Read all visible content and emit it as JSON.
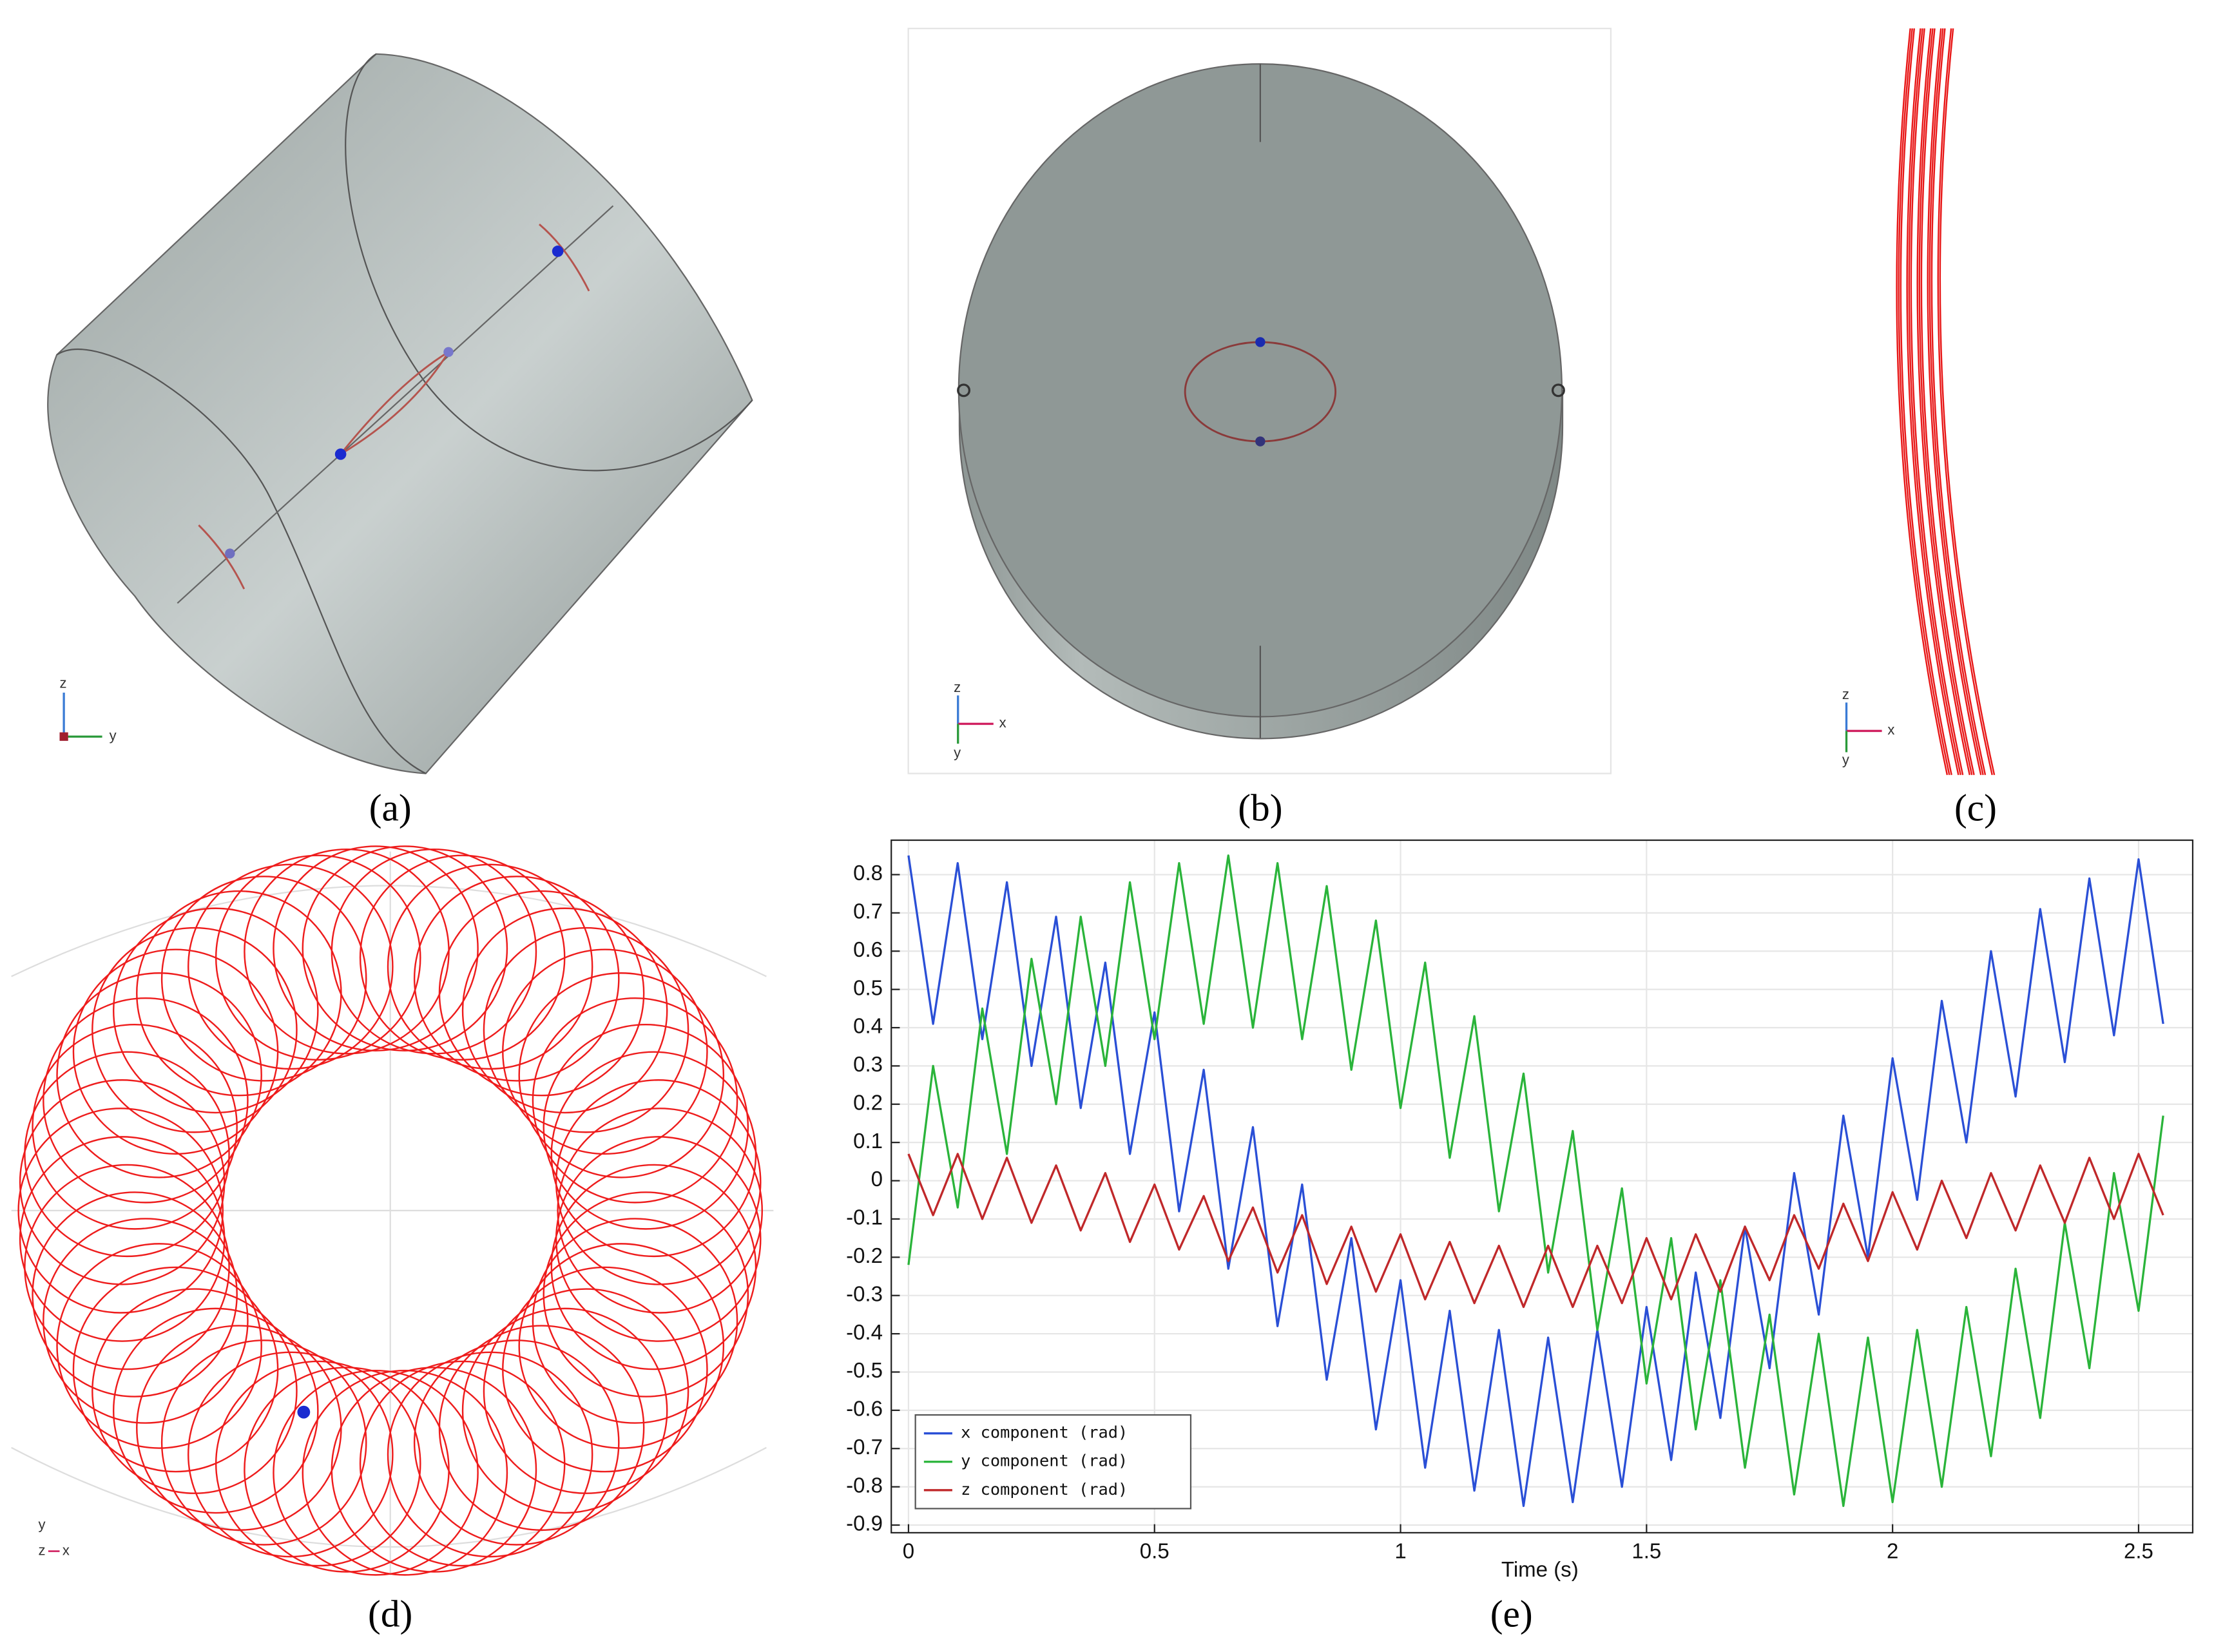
{
  "panels": [
    {
      "label": "(a)",
      "axes": [
        "z",
        "y"
      ]
    },
    {
      "label": "(b)",
      "axes": [
        "z",
        "x",
        "y"
      ]
    },
    {
      "label": "(c)",
      "axes": [
        "z",
        "x",
        "y"
      ]
    },
    {
      "label": "(d)",
      "axes": [
        "y",
        "z",
        "x"
      ]
    },
    {
      "label": "(e)"
    }
  ],
  "chart_data": {
    "type": "line",
    "x_label": "Time (s)",
    "x": [
      0,
      0.05,
      0.1,
      0.15,
      0.2,
      0.25,
      0.3,
      0.35,
      0.4,
      0.45,
      0.5,
      0.55,
      0.6,
      0.65,
      0.7,
      0.75,
      0.8,
      0.85,
      0.9,
      0.95,
      1,
      1.05,
      1.1,
      1.15,
      1.2,
      1.25,
      1.3,
      1.35,
      1.4,
      1.45,
      1.5,
      1.55,
      1.6,
      1.65,
      1.7,
      1.75,
      1.8,
      1.85,
      1.9,
      1.95,
      2,
      2.05,
      2.1,
      2.15,
      2.2,
      2.25,
      2.3,
      2.35,
      2.4,
      2.45,
      2.5,
      2.55
    ],
    "series": [
      {
        "name": "x component (rad)",
        "color": "#2a4fd6",
        "values": [
          0.85,
          0.41,
          0.83,
          0.37,
          0.78,
          0.3,
          0.69,
          0.19,
          0.57,
          0.07,
          0.44,
          -0.08,
          0.29,
          -0.23,
          0.14,
          -0.38,
          -0.01,
          -0.52,
          -0.15,
          -0.65,
          -0.26,
          -0.75,
          -0.34,
          -0.81,
          -0.39,
          -0.85,
          -0.41,
          -0.84,
          -0.39,
          -0.8,
          -0.33,
          -0.73,
          -0.24,
          -0.62,
          -0.12,
          -0.49,
          0.02,
          -0.35,
          0.17,
          -0.2,
          0.32,
          -0.05,
          0.47,
          0.1,
          0.6,
          0.22,
          0.71,
          0.31,
          0.79,
          0.38,
          0.84,
          0.41
        ]
      },
      {
        "name": "y component (rad)",
        "color": "#2ab43a",
        "values": [
          -0.22,
          0.3,
          -0.07,
          0.45,
          0.07,
          0.58,
          0.2,
          0.69,
          0.3,
          0.78,
          0.37,
          0.83,
          0.41,
          0.85,
          0.4,
          0.83,
          0.37,
          0.77,
          0.29,
          0.68,
          0.19,
          0.57,
          0.06,
          0.43,
          -0.08,
          0.28,
          -0.24,
          0.13,
          -0.39,
          -0.02,
          -0.53,
          -0.15,
          -0.65,
          -0.26,
          -0.75,
          -0.35,
          -0.82,
          -0.4,
          -0.85,
          -0.41,
          -0.84,
          -0.39,
          -0.8,
          -0.33,
          -0.72,
          -0.23,
          -0.62,
          -0.11,
          -0.49,
          0.02,
          -0.34,
          0.17
        ]
      },
      {
        "name": "z component (rad)",
        "color": "#c0282a",
        "values": [
          0.07,
          -0.09,
          0.07,
          -0.1,
          0.06,
          -0.11,
          0.04,
          -0.13,
          0.02,
          -0.16,
          -0.01,
          -0.18,
          -0.04,
          -0.21,
          -0.07,
          -0.24,
          -0.09,
          -0.27,
          -0.12,
          -0.29,
          -0.14,
          -0.31,
          -0.16,
          -0.32,
          -0.17,
          -0.33,
          -0.17,
          -0.33,
          -0.17,
          -0.32,
          -0.15,
          -0.31,
          -0.14,
          -0.29,
          -0.12,
          -0.26,
          -0.09,
          -0.23,
          -0.06,
          -0.21,
          -0.03,
          -0.18,
          0,
          -0.15,
          0.02,
          -0.13,
          0.04,
          -0.11,
          0.06,
          -0.1,
          0.07,
          -0.09
        ]
      }
    ],
    "xlim": [
      -0.035,
      2.61
    ],
    "ylim": [
      -0.92,
      0.89
    ],
    "xticks": [
      0,
      0.5,
      1,
      1.5,
      2,
      2.5
    ],
    "yticks": [
      -0.9,
      -0.8,
      -0.7,
      -0.6,
      -0.5,
      -0.4,
      -0.3,
      -0.2,
      -0.1,
      0,
      0.1,
      0.2,
      0.3,
      0.4,
      0.5,
      0.6,
      0.7,
      0.8
    ],
    "grid": true,
    "legend": "lower left"
  }
}
